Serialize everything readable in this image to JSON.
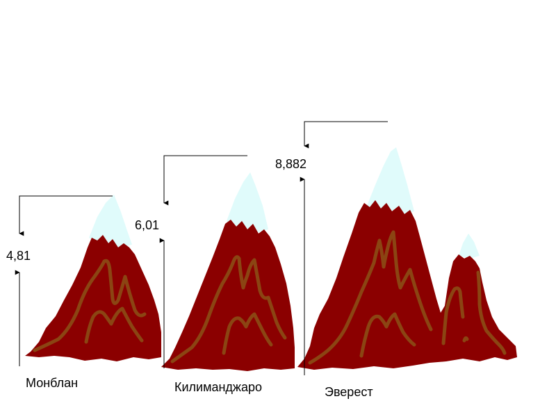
{
  "colors": {
    "mountain": "#8b0000",
    "snow": "#e0fbfb",
    "ridge": "#8b4513",
    "line": "#000000"
  },
  "mountains": [
    {
      "name": "Монблан",
      "height_label": "4,81"
    },
    {
      "name": "Килиманджаро",
      "height_label": "6,01"
    },
    {
      "name": "Эверест",
      "height_label": "8,882"
    }
  ]
}
